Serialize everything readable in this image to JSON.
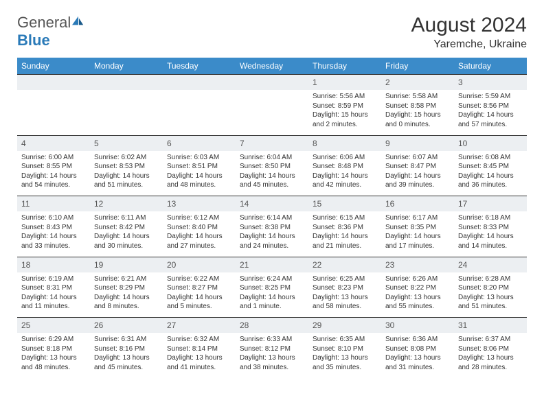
{
  "brand": {
    "part1": "General",
    "part2": "Blue"
  },
  "title": "August 2024",
  "location": "Yaremche, Ukraine",
  "styling": {
    "header_bg": "#3b8bc9",
    "header_fg": "#ffffff",
    "daynum_bg": "#eceff2",
    "daynum_fg": "#555555",
    "body_text": "#333333",
    "page_bg": "#ffffff",
    "title_fontsize": 30,
    "location_fontsize": 16,
    "th_fontsize": 12,
    "daynum_fontsize": 12,
    "cell_fontsize": 10
  },
  "weekdays": [
    "Sunday",
    "Monday",
    "Tuesday",
    "Wednesday",
    "Thursday",
    "Friday",
    "Saturday"
  ],
  "weeks": [
    {
      "nums": [
        "",
        "",
        "",
        "",
        "1",
        "2",
        "3"
      ],
      "cells": [
        null,
        null,
        null,
        null,
        {
          "sunrise": "Sunrise: 5:56 AM",
          "sunset": "Sunset: 8:59 PM",
          "day1": "Daylight: 15 hours",
          "day2": "and 2 minutes."
        },
        {
          "sunrise": "Sunrise: 5:58 AM",
          "sunset": "Sunset: 8:58 PM",
          "day1": "Daylight: 15 hours",
          "day2": "and 0 minutes."
        },
        {
          "sunrise": "Sunrise: 5:59 AM",
          "sunset": "Sunset: 8:56 PM",
          "day1": "Daylight: 14 hours",
          "day2": "and 57 minutes."
        }
      ]
    },
    {
      "nums": [
        "4",
        "5",
        "6",
        "7",
        "8",
        "9",
        "10"
      ],
      "cells": [
        {
          "sunrise": "Sunrise: 6:00 AM",
          "sunset": "Sunset: 8:55 PM",
          "day1": "Daylight: 14 hours",
          "day2": "and 54 minutes."
        },
        {
          "sunrise": "Sunrise: 6:02 AM",
          "sunset": "Sunset: 8:53 PM",
          "day1": "Daylight: 14 hours",
          "day2": "and 51 minutes."
        },
        {
          "sunrise": "Sunrise: 6:03 AM",
          "sunset": "Sunset: 8:51 PM",
          "day1": "Daylight: 14 hours",
          "day2": "and 48 minutes."
        },
        {
          "sunrise": "Sunrise: 6:04 AM",
          "sunset": "Sunset: 8:50 PM",
          "day1": "Daylight: 14 hours",
          "day2": "and 45 minutes."
        },
        {
          "sunrise": "Sunrise: 6:06 AM",
          "sunset": "Sunset: 8:48 PM",
          "day1": "Daylight: 14 hours",
          "day2": "and 42 minutes."
        },
        {
          "sunrise": "Sunrise: 6:07 AM",
          "sunset": "Sunset: 8:47 PM",
          "day1": "Daylight: 14 hours",
          "day2": "and 39 minutes."
        },
        {
          "sunrise": "Sunrise: 6:08 AM",
          "sunset": "Sunset: 8:45 PM",
          "day1": "Daylight: 14 hours",
          "day2": "and 36 minutes."
        }
      ]
    },
    {
      "nums": [
        "11",
        "12",
        "13",
        "14",
        "15",
        "16",
        "17"
      ],
      "cells": [
        {
          "sunrise": "Sunrise: 6:10 AM",
          "sunset": "Sunset: 8:43 PM",
          "day1": "Daylight: 14 hours",
          "day2": "and 33 minutes."
        },
        {
          "sunrise": "Sunrise: 6:11 AM",
          "sunset": "Sunset: 8:42 PM",
          "day1": "Daylight: 14 hours",
          "day2": "and 30 minutes."
        },
        {
          "sunrise": "Sunrise: 6:12 AM",
          "sunset": "Sunset: 8:40 PM",
          "day1": "Daylight: 14 hours",
          "day2": "and 27 minutes."
        },
        {
          "sunrise": "Sunrise: 6:14 AM",
          "sunset": "Sunset: 8:38 PM",
          "day1": "Daylight: 14 hours",
          "day2": "and 24 minutes."
        },
        {
          "sunrise": "Sunrise: 6:15 AM",
          "sunset": "Sunset: 8:36 PM",
          "day1": "Daylight: 14 hours",
          "day2": "and 21 minutes."
        },
        {
          "sunrise": "Sunrise: 6:17 AM",
          "sunset": "Sunset: 8:35 PM",
          "day1": "Daylight: 14 hours",
          "day2": "and 17 minutes."
        },
        {
          "sunrise": "Sunrise: 6:18 AM",
          "sunset": "Sunset: 8:33 PM",
          "day1": "Daylight: 14 hours",
          "day2": "and 14 minutes."
        }
      ]
    },
    {
      "nums": [
        "18",
        "19",
        "20",
        "21",
        "22",
        "23",
        "24"
      ],
      "cells": [
        {
          "sunrise": "Sunrise: 6:19 AM",
          "sunset": "Sunset: 8:31 PM",
          "day1": "Daylight: 14 hours",
          "day2": "and 11 minutes."
        },
        {
          "sunrise": "Sunrise: 6:21 AM",
          "sunset": "Sunset: 8:29 PM",
          "day1": "Daylight: 14 hours",
          "day2": "and 8 minutes."
        },
        {
          "sunrise": "Sunrise: 6:22 AM",
          "sunset": "Sunset: 8:27 PM",
          "day1": "Daylight: 14 hours",
          "day2": "and 5 minutes."
        },
        {
          "sunrise": "Sunrise: 6:24 AM",
          "sunset": "Sunset: 8:25 PM",
          "day1": "Daylight: 14 hours",
          "day2": "and 1 minute."
        },
        {
          "sunrise": "Sunrise: 6:25 AM",
          "sunset": "Sunset: 8:23 PM",
          "day1": "Daylight: 13 hours",
          "day2": "and 58 minutes."
        },
        {
          "sunrise": "Sunrise: 6:26 AM",
          "sunset": "Sunset: 8:22 PM",
          "day1": "Daylight: 13 hours",
          "day2": "and 55 minutes."
        },
        {
          "sunrise": "Sunrise: 6:28 AM",
          "sunset": "Sunset: 8:20 PM",
          "day1": "Daylight: 13 hours",
          "day2": "and 51 minutes."
        }
      ]
    },
    {
      "nums": [
        "25",
        "26",
        "27",
        "28",
        "29",
        "30",
        "31"
      ],
      "cells": [
        {
          "sunrise": "Sunrise: 6:29 AM",
          "sunset": "Sunset: 8:18 PM",
          "day1": "Daylight: 13 hours",
          "day2": "and 48 minutes."
        },
        {
          "sunrise": "Sunrise: 6:31 AM",
          "sunset": "Sunset: 8:16 PM",
          "day1": "Daylight: 13 hours",
          "day2": "and 45 minutes."
        },
        {
          "sunrise": "Sunrise: 6:32 AM",
          "sunset": "Sunset: 8:14 PM",
          "day1": "Daylight: 13 hours",
          "day2": "and 41 minutes."
        },
        {
          "sunrise": "Sunrise: 6:33 AM",
          "sunset": "Sunset: 8:12 PM",
          "day1": "Daylight: 13 hours",
          "day2": "and 38 minutes."
        },
        {
          "sunrise": "Sunrise: 6:35 AM",
          "sunset": "Sunset: 8:10 PM",
          "day1": "Daylight: 13 hours",
          "day2": "and 35 minutes."
        },
        {
          "sunrise": "Sunrise: 6:36 AM",
          "sunset": "Sunset: 8:08 PM",
          "day1": "Daylight: 13 hours",
          "day2": "and 31 minutes."
        },
        {
          "sunrise": "Sunrise: 6:37 AM",
          "sunset": "Sunset: 8:06 PM",
          "day1": "Daylight: 13 hours",
          "day2": "and 28 minutes."
        }
      ]
    }
  ]
}
